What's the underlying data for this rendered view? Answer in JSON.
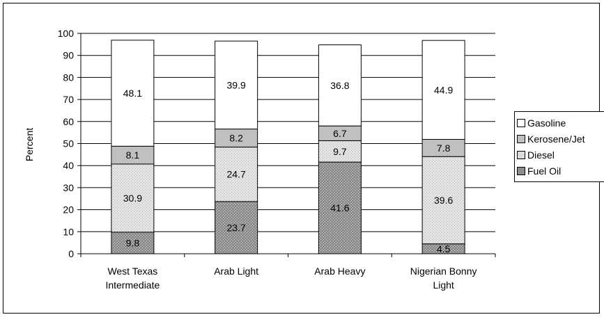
{
  "chart_data": {
    "type": "bar",
    "stacked": true,
    "categories": [
      [
        "West Texas",
        "Intermediate"
      ],
      [
        "Arab Light"
      ],
      [
        "Arab Heavy"
      ],
      [
        "Nigerian Bonny",
        "Light"
      ]
    ],
    "series": [
      {
        "name": "Fuel Oil",
        "values": [
          9.8,
          23.7,
          41.6,
          4.5
        ],
        "color": "#8c8c8c",
        "pattern": "dots-dark"
      },
      {
        "name": "Diesel",
        "values": [
          30.9,
          24.7,
          9.7,
          39.6
        ],
        "color": "#dcdcdc",
        "pattern": "dots-light"
      },
      {
        "name": "Kerosene/Jet",
        "values": [
          8.1,
          8.2,
          6.7,
          7.8
        ],
        "color": "#c0c0c0",
        "pattern": "solid"
      },
      {
        "name": "Gasoline",
        "values": [
          48.1,
          39.9,
          36.8,
          44.9
        ],
        "color": "#ffffff",
        "pattern": "solid"
      }
    ],
    "legend_order": [
      "Gasoline",
      "Kerosene/Jet",
      "Diesel",
      "Fuel Oil"
    ],
    "title": "",
    "xlabel": "",
    "ylabel": "Percent",
    "ylim": [
      0,
      100
    ],
    "yticks": [
      0,
      10,
      20,
      30,
      40,
      50,
      60,
      70,
      80,
      90,
      100
    ],
    "grid": true,
    "legend_position": "right"
  }
}
